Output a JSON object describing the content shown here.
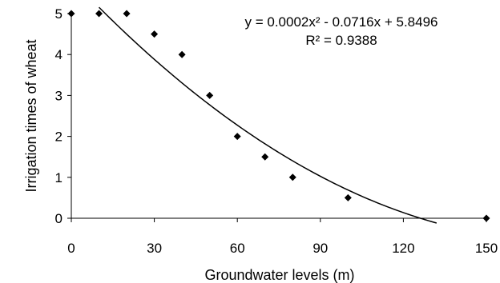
{
  "chart_data": {
    "type": "scatter",
    "xlabel": "Groundwater levels (m)",
    "ylabel": "Irrigation times of wheat",
    "xlim": [
      0,
      150
    ],
    "ylim": [
      0,
      5
    ],
    "xticks": [
      0,
      30,
      60,
      90,
      120,
      150
    ],
    "yticks": [
      0,
      1,
      2,
      3,
      4,
      5
    ],
    "x_tick_labels": [
      "0",
      "30",
      "60",
      "90",
      "120",
      "150"
    ],
    "y_tick_labels": [
      "0",
      "1",
      "2",
      "3",
      "4",
      "5"
    ],
    "grid": false,
    "series": [
      {
        "marker": "diamond",
        "points": [
          {
            "x": 0,
            "y": 5
          },
          {
            "x": 10,
            "y": 5
          },
          {
            "x": 20,
            "y": 5
          },
          {
            "x": 30,
            "y": 4.5
          },
          {
            "x": 40,
            "y": 4
          },
          {
            "x": 50,
            "y": 3
          },
          {
            "x": 60,
            "y": 2
          },
          {
            "x": 70,
            "y": 1.5
          },
          {
            "x": 80,
            "y": 1
          },
          {
            "x": 100,
            "y": 0.5
          },
          {
            "x": 150,
            "y": 0
          }
        ]
      }
    ],
    "trendline": {
      "type": "polynomial",
      "coefficients": {
        "a": 0.0002,
        "b": -0.0716,
        "c": 5.8496
      },
      "x_range": [
        10,
        132
      ],
      "equation": "y = 0.0002x² - 0.0716x + 5.8496",
      "r_squared": "R² = 0.9388"
    },
    "colors": {
      "marker": "#000000",
      "line": "#000000",
      "axis": "#000000"
    }
  }
}
